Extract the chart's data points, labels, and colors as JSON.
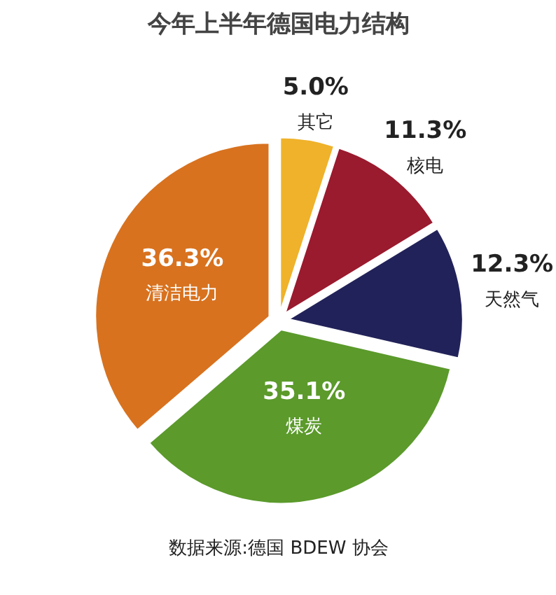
{
  "chart_data": {
    "type": "pie",
    "title": "今年上半年德国电力结构",
    "categories": [
      "其它",
      "核电",
      "天然气",
      "煤炭",
      "清洁电力"
    ],
    "values": [
      5.0,
      11.3,
      12.3,
      35.1,
      36.3
    ],
    "value_labels": [
      "5.0%",
      "11.3%",
      "12.3%",
      "35.1%",
      "36.3%"
    ],
    "colors": [
      "#efb22a",
      "#9a1a2e",
      "#22225a",
      "#5b9a2b",
      "#d8721f"
    ],
    "annotations": [
      "数据来源:德国 BDEW 协会"
    ]
  }
}
